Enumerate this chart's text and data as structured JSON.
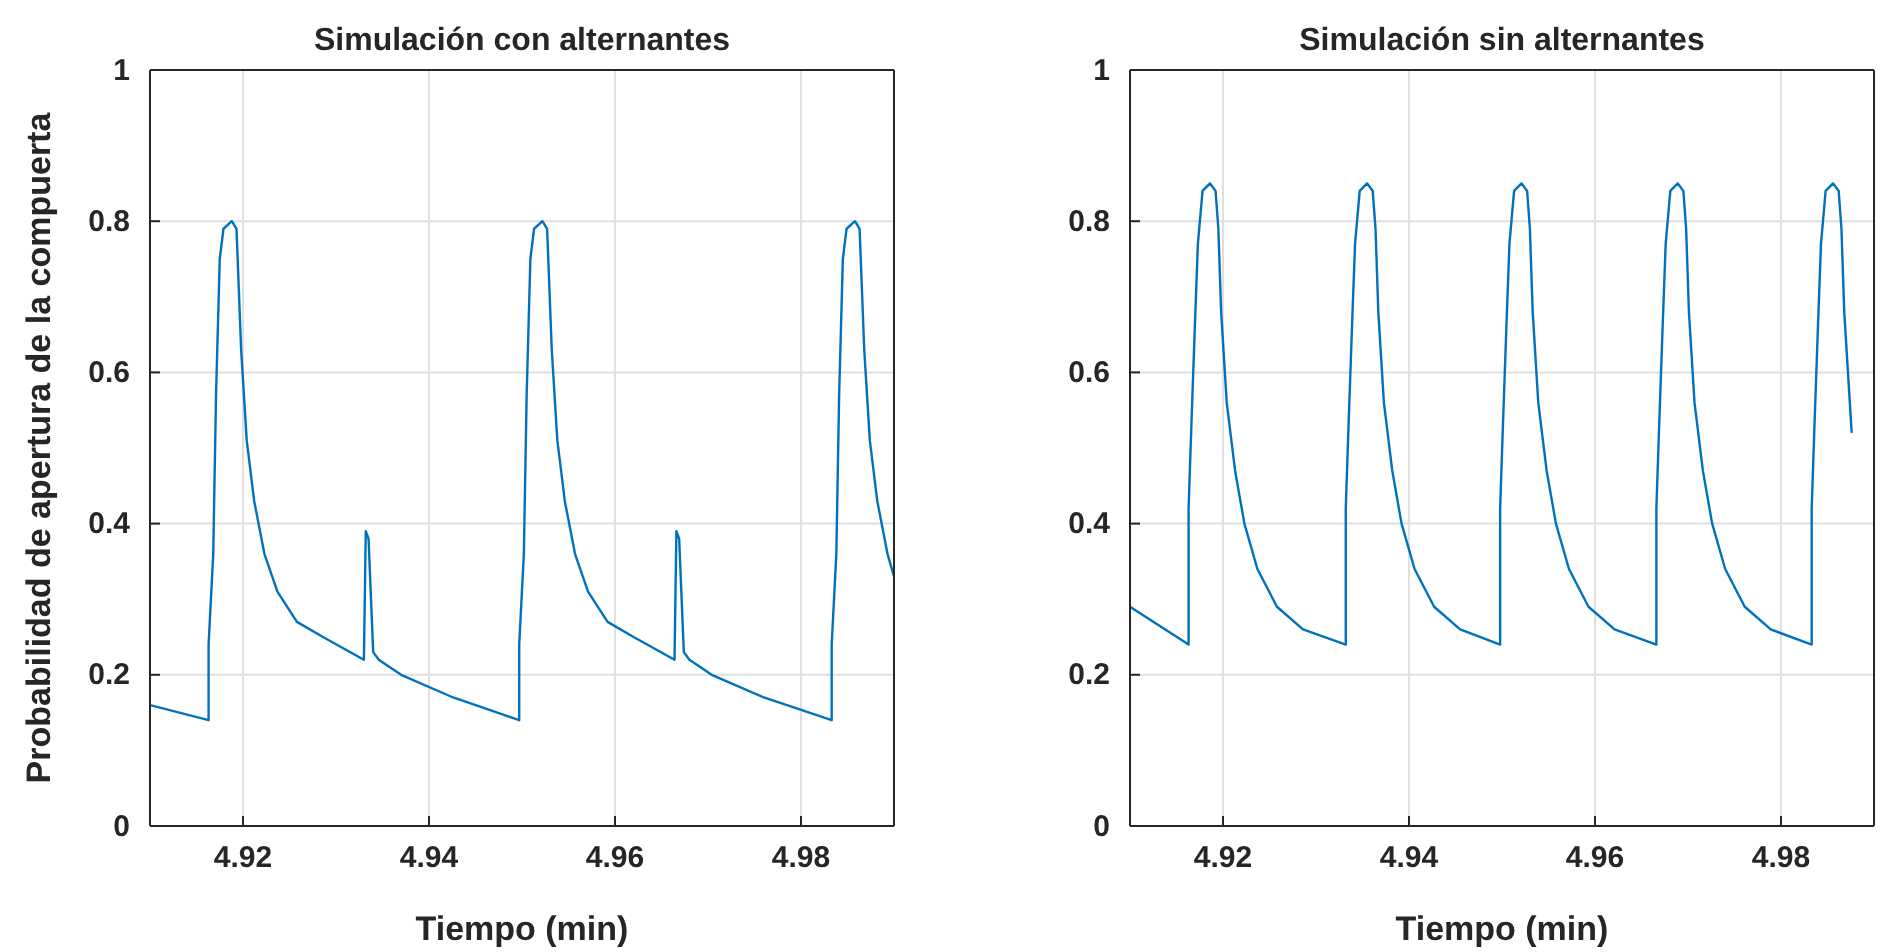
{
  "chart_data": [
    {
      "type": "line",
      "title": "Simulación con alternantes",
      "xlabel": "Tiempo (min)",
      "ylabel": "Probabilidad de apertura de la compuerta",
      "xlim": [
        4.91,
        4.99
      ],
      "ylim": [
        0,
        1
      ],
      "xticks": [
        4.92,
        4.94,
        4.96,
        4.98
      ],
      "yticks": [
        0,
        0.2,
        0.4,
        0.6,
        0.8,
        1
      ],
      "grid": true,
      "series": [
        {
          "color": "#0072bd",
          "x": [
            4.91,
            4.9163,
            4.9163,
            4.9168,
            4.9171,
            4.9175,
            4.9179,
            4.9188,
            4.9193,
            4.9198,
            4.9204,
            4.9212,
            4.9223,
            4.9237,
            4.9258,
            4.9286,
            4.933,
            4.9332,
            4.9335,
            4.934,
            4.9346,
            4.937,
            4.9426,
            4.9497,
            4.9497,
            4.9502,
            4.9505,
            4.9509,
            4.9513,
            4.9522,
            4.9527,
            4.9532,
            4.9538,
            4.9546,
            4.9557,
            4.9571,
            4.9592,
            4.962,
            4.9664,
            4.9666,
            4.9669,
            4.9674,
            4.968,
            4.9704,
            4.976,
            4.9833,
            4.9833,
            4.9838,
            4.9841,
            4.9845,
            4.9849,
            4.9858,
            4.9863,
            4.9868,
            4.9874,
            4.9882,
            4.9893,
            4.99
          ],
          "values": [
            0.16,
            0.14,
            0.24,
            0.36,
            0.57,
            0.75,
            0.79,
            0.8,
            0.79,
            0.63,
            0.51,
            0.43,
            0.36,
            0.31,
            0.27,
            0.25,
            0.22,
            0.39,
            0.38,
            0.23,
            0.22,
            0.2,
            0.17,
            0.14,
            0.24,
            0.36,
            0.57,
            0.75,
            0.79,
            0.8,
            0.79,
            0.63,
            0.51,
            0.43,
            0.36,
            0.31,
            0.27,
            0.25,
            0.22,
            0.39,
            0.38,
            0.23,
            0.22,
            0.2,
            0.17,
            0.14,
            0.24,
            0.36,
            0.57,
            0.75,
            0.79,
            0.8,
            0.79,
            0.63,
            0.51,
            0.43,
            0.36,
            0.33
          ]
        }
      ]
    },
    {
      "type": "line",
      "title": "Simulación sin alternantes",
      "xlabel": "Tiempo (min)",
      "xlim": [
        4.91,
        4.99
      ],
      "ylim": [
        0,
        1
      ],
      "xticks": [
        4.92,
        4.94,
        4.96,
        4.98
      ],
      "yticks": [
        0,
        0.2,
        0.4,
        0.6,
        0.8,
        1
      ],
      "grid": true,
      "series": [
        {
          "color": "#0072bd",
          "x": [
            4.91,
            4.9163,
            4.9163,
            4.9166,
            4.917,
            4.9173,
            4.9178,
            4.9186,
            4.9192,
            4.9195,
            4.9198,
            4.9204,
            4.9213,
            4.9223,
            4.9237,
            4.9258,
            4.9286,
            4.9332,
            4.9332,
            4.9335,
            4.9339,
            4.9342,
            4.9347,
            4.9355,
            4.9361,
            4.9364,
            4.9367,
            4.9373,
            4.9382,
            4.9392,
            4.9406,
            4.9427,
            4.9455,
            4.9498,
            4.9498,
            4.9501,
            4.9505,
            4.9508,
            4.9513,
            4.9521,
            4.9527,
            4.953,
            4.9533,
            4.9539,
            4.9548,
            4.9558,
            4.9572,
            4.9593,
            4.9621,
            4.9666,
            4.9666,
            4.9669,
            4.9673,
            4.9676,
            4.9681,
            4.9689,
            4.9695,
            4.9698,
            4.9701,
            4.9707,
            4.9716,
            4.9726,
            4.974,
            4.9761,
            4.9789,
            4.9833,
            4.9833,
            4.9836,
            4.984,
            4.9843,
            4.9848,
            4.9856,
            4.9862,
            4.9865,
            4.9868,
            4.9874,
            4.9876
          ],
          "values": [
            0.29,
            0.24,
            0.42,
            0.53,
            0.67,
            0.77,
            0.84,
            0.85,
            0.84,
            0.79,
            0.68,
            0.56,
            0.47,
            0.4,
            0.34,
            0.29,
            0.26,
            0.24,
            0.42,
            0.53,
            0.67,
            0.77,
            0.84,
            0.85,
            0.84,
            0.79,
            0.68,
            0.56,
            0.47,
            0.4,
            0.34,
            0.29,
            0.26,
            0.24,
            0.42,
            0.53,
            0.67,
            0.77,
            0.84,
            0.85,
            0.84,
            0.79,
            0.68,
            0.56,
            0.47,
            0.4,
            0.34,
            0.29,
            0.26,
            0.24,
            0.42,
            0.53,
            0.67,
            0.77,
            0.84,
            0.85,
            0.84,
            0.79,
            0.68,
            0.56,
            0.47,
            0.4,
            0.34,
            0.29,
            0.26,
            0.24,
            0.42,
            0.53,
            0.67,
            0.77,
            0.84,
            0.85,
            0.84,
            0.79,
            0.68,
            0.56,
            0.52
          ]
        }
      ]
    }
  ]
}
